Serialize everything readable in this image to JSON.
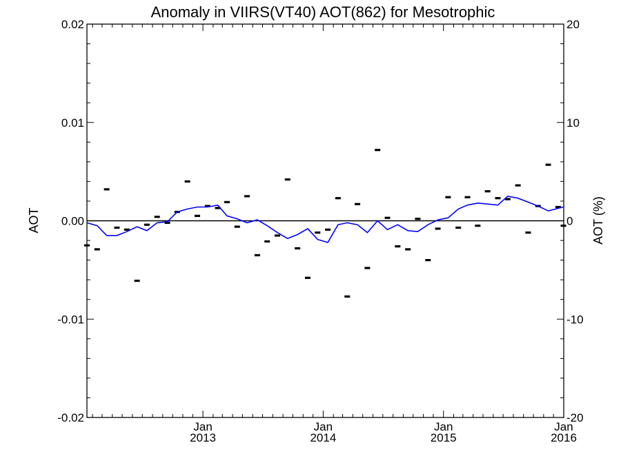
{
  "chart_data": {
    "type": "scatter",
    "title": "Anomaly in VIIRS(VT40) AOT(862) for Mesotrophic",
    "ylabel": "AOT",
    "ylabel_right": "AOT (%)",
    "ylim": [
      -0.02,
      0.02
    ],
    "ylim_right": [
      -20,
      20
    ],
    "xlim": [
      "2012-01-15",
      "2016-01-01"
    ],
    "y_ticks": [
      "0.02",
      "0.01",
      "0.00",
      "-0.01",
      "-0.02"
    ],
    "y_ticks_right": [
      "20",
      "10",
      "0",
      "-10",
      "-20"
    ],
    "x_ticks": [
      {
        "month": "Jan",
        "year": "2013",
        "date": "2013-01-01"
      },
      {
        "month": "Jan",
        "year": "2014",
        "date": "2014-01-01"
      },
      {
        "month": "Jan",
        "year": "2015",
        "date": "2015-01-01"
      },
      {
        "month": "Jan",
        "year": "2016",
        "date": "2016-01-01"
      }
    ],
    "grid": false,
    "zero_line": true,
    "series": [
      {
        "kind": "points",
        "color": "#000000",
        "points": [
          {
            "x": "2012-01-15",
            "y": -0.0025
          },
          {
            "x": "2012-02-15",
            "y": -0.0029
          },
          {
            "x": "2012-03-15",
            "y": 0.0032
          },
          {
            "x": "2012-04-15",
            "y": -0.0007
          },
          {
            "x": "2012-05-15",
            "y": -0.0009
          },
          {
            "x": "2012-06-15",
            "y": -0.0061
          },
          {
            "x": "2012-07-15",
            "y": -0.0004
          },
          {
            "x": "2012-08-15",
            "y": 0.0004
          },
          {
            "x": "2012-09-15",
            "y": -0.0002
          },
          {
            "x": "2012-10-15",
            "y": 0.0009
          },
          {
            "x": "2012-11-15",
            "y": 0.004
          },
          {
            "x": "2012-12-15",
            "y": 0.0005
          },
          {
            "x": "2013-01-15",
            "y": 0.0015
          },
          {
            "x": "2013-02-15",
            "y": 0.0013
          },
          {
            "x": "2013-03-15",
            "y": 0.0019
          },
          {
            "x": "2013-04-15",
            "y": -0.0006
          },
          {
            "x": "2013-05-15",
            "y": 0.0025
          },
          {
            "x": "2013-06-15",
            "y": -0.0035
          },
          {
            "x": "2013-07-15",
            "y": -0.0021
          },
          {
            "x": "2013-08-15",
            "y": -0.0015
          },
          {
            "x": "2013-09-15",
            "y": 0.0042
          },
          {
            "x": "2013-10-15",
            "y": -0.0028
          },
          {
            "x": "2013-11-15",
            "y": -0.0058
          },
          {
            "x": "2013-12-15",
            "y": -0.0012
          },
          {
            "x": "2014-01-15",
            "y": -0.0009
          },
          {
            "x": "2014-02-15",
            "y": 0.0023
          },
          {
            "x": "2014-03-15",
            "y": -0.0077
          },
          {
            "x": "2014-04-15",
            "y": 0.0017
          },
          {
            "x": "2014-05-15",
            "y": -0.0048
          },
          {
            "x": "2014-06-15",
            "y": 0.0072
          },
          {
            "x": "2014-07-15",
            "y": 0.0003
          },
          {
            "x": "2014-08-15",
            "y": -0.0026
          },
          {
            "x": "2014-09-15",
            "y": -0.0029
          },
          {
            "x": "2014-10-15",
            "y": 0.0002
          },
          {
            "x": "2014-11-15",
            "y": -0.004
          },
          {
            "x": "2014-12-15",
            "y": -0.0008
          },
          {
            "x": "2015-01-15",
            "y": 0.0024
          },
          {
            "x": "2015-02-15",
            "y": -0.0007
          },
          {
            "x": "2015-03-15",
            "y": 0.0024
          },
          {
            "x": "2015-04-15",
            "y": -0.0005
          },
          {
            "x": "2015-05-15",
            "y": 0.003
          },
          {
            "x": "2015-06-15",
            "y": 0.0023
          },
          {
            "x": "2015-07-15",
            "y": 0.0022
          },
          {
            "x": "2015-08-15",
            "y": 0.0036
          },
          {
            "x": "2015-09-15",
            "y": -0.0012
          },
          {
            "x": "2015-10-15",
            "y": 0.0015
          },
          {
            "x": "2015-11-15",
            "y": 0.0057
          },
          {
            "x": "2015-12-15",
            "y": 0.0014
          },
          {
            "x": "2015-12-31",
            "y": -0.0005
          }
        ]
      },
      {
        "kind": "line",
        "color": "#0000ff",
        "points": [
          {
            "x": "2012-01-15",
            "y": -0.0002
          },
          {
            "x": "2012-02-15",
            "y": -0.0005
          },
          {
            "x": "2012-03-15",
            "y": -0.0015
          },
          {
            "x": "2012-04-15",
            "y": -0.0015
          },
          {
            "x": "2012-05-15",
            "y": -0.0011
          },
          {
            "x": "2012-06-15",
            "y": -0.0006
          },
          {
            "x": "2012-07-15",
            "y": -0.001
          },
          {
            "x": "2012-08-15",
            "y": -0.0002
          },
          {
            "x": "2012-09-15",
            "y": -0.0001
          },
          {
            "x": "2012-10-15",
            "y": 0.0009
          },
          {
            "x": "2012-11-15",
            "y": 0.0012
          },
          {
            "x": "2012-12-15",
            "y": 0.0014
          },
          {
            "x": "2013-01-15",
            "y": 0.0014
          },
          {
            "x": "2013-02-15",
            "y": 0.0016
          },
          {
            "x": "2013-03-15",
            "y": 0.0005
          },
          {
            "x": "2013-04-15",
            "y": 0.0002
          },
          {
            "x": "2013-05-15",
            "y": -0.0002
          },
          {
            "x": "2013-06-15",
            "y": 0.0001
          },
          {
            "x": "2013-07-15",
            "y": -0.0005
          },
          {
            "x": "2013-08-15",
            "y": -0.0012
          },
          {
            "x": "2013-09-15",
            "y": -0.0018
          },
          {
            "x": "2013-10-15",
            "y": -0.0014
          },
          {
            "x": "2013-11-15",
            "y": -0.0008
          },
          {
            "x": "2013-12-15",
            "y": -0.0019
          },
          {
            "x": "2014-01-15",
            "y": -0.0022
          },
          {
            "x": "2014-02-15",
            "y": -0.0004
          },
          {
            "x": "2014-03-15",
            "y": -0.0002
          },
          {
            "x": "2014-04-15",
            "y": -0.0004
          },
          {
            "x": "2014-05-15",
            "y": -0.0012
          },
          {
            "x": "2014-06-15",
            "y": 0.0
          },
          {
            "x": "2014-07-15",
            "y": -0.0009
          },
          {
            "x": "2014-08-15",
            "y": -0.0004
          },
          {
            "x": "2014-09-15",
            "y": -0.001
          },
          {
            "x": "2014-10-15",
            "y": -0.0011
          },
          {
            "x": "2014-11-15",
            "y": -0.0004
          },
          {
            "x": "2014-12-15",
            "y": 0.0001
          },
          {
            "x": "2015-01-15",
            "y": 0.0003
          },
          {
            "x": "2015-02-15",
            "y": 0.0012
          },
          {
            "x": "2015-03-15",
            "y": 0.0016
          },
          {
            "x": "2015-04-15",
            "y": 0.0018
          },
          {
            "x": "2015-05-15",
            "y": 0.0017
          },
          {
            "x": "2015-06-15",
            "y": 0.0016
          },
          {
            "x": "2015-07-15",
            "y": 0.0025
          },
          {
            "x": "2015-08-15",
            "y": 0.0023
          },
          {
            "x": "2015-09-15",
            "y": 0.0019
          },
          {
            "x": "2015-10-15",
            "y": 0.0015
          },
          {
            "x": "2015-11-15",
            "y": 0.001
          },
          {
            "x": "2015-12-31",
            "y": 0.0014
          }
        ]
      }
    ]
  }
}
